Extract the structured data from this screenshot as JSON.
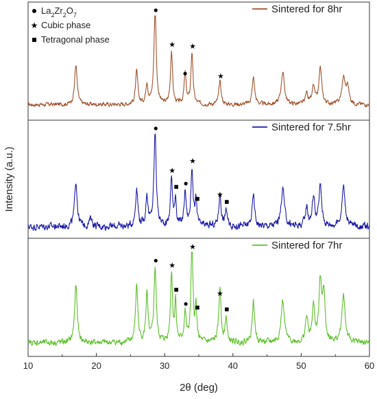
{
  "chart_data": {
    "type": "line",
    "title": "",
    "xlabel": "2θ (deg)",
    "ylabel": "Intensity (a.u.)",
    "xlim": [
      10,
      60
    ],
    "xticks": [
      10,
      20,
      30,
      40,
      50,
      60
    ],
    "grid": false,
    "layout": "three vertically stacked panels sharing x axis",
    "phase_key": [
      {
        "symbol": "circle",
        "formula_parts": [
          "La",
          "2",
          "Zr",
          "2",
          "O",
          "7"
        ]
      },
      {
        "symbol": "star",
        "label": "Cubic phase"
      },
      {
        "symbol": "square",
        "label": "Tetragonal phase"
      }
    ],
    "series": [
      {
        "name": "Sintered for 8hr",
        "color": "#a0522d",
        "panel": 0,
        "baseline": 0.12,
        "noise": 0.035,
        "peaks": [
          {
            "x": 17.0,
            "h": 0.42,
            "w": 0.22
          },
          {
            "x": 25.9,
            "h": 0.34,
            "w": 0.2
          },
          {
            "x": 27.4,
            "h": 0.22,
            "w": 0.18
          },
          {
            "x": 28.6,
            "h": 1.0,
            "w": 0.2
          },
          {
            "x": 31.0,
            "h": 0.56,
            "w": 0.18
          },
          {
            "x": 33.0,
            "h": 0.32,
            "w": 0.18
          },
          {
            "x": 34.0,
            "h": 0.54,
            "w": 0.18
          },
          {
            "x": 38.1,
            "h": 0.24,
            "w": 0.2
          },
          {
            "x": 43.0,
            "h": 0.28,
            "w": 0.22
          },
          {
            "x": 47.3,
            "h": 0.34,
            "w": 0.28
          },
          {
            "x": 50.8,
            "h": 0.12,
            "w": 0.22
          },
          {
            "x": 51.8,
            "h": 0.18,
            "w": 0.22
          },
          {
            "x": 52.8,
            "h": 0.38,
            "w": 0.24
          },
          {
            "x": 56.2,
            "h": 0.28,
            "w": 0.28
          },
          {
            "x": 56.8,
            "h": 0.18,
            "w": 0.24
          }
        ],
        "markers": [
          {
            "x": 28.6,
            "symbol": "circle"
          },
          {
            "x": 31.0,
            "symbol": "star"
          },
          {
            "x": 32.9,
            "symbol": "circle"
          },
          {
            "x": 34.0,
            "symbol": "star"
          },
          {
            "x": 38.1,
            "symbol": "star"
          }
        ]
      },
      {
        "name": "Sintered for 7.5hr",
        "color": "#1a1aa6",
        "panel": 1,
        "baseline": 0.08,
        "noise": 0.06,
        "peaks": [
          {
            "x": 17.0,
            "h": 0.48,
            "w": 0.22
          },
          {
            "x": 19.2,
            "h": 0.1,
            "w": 0.2
          },
          {
            "x": 25.9,
            "h": 0.4,
            "w": 0.2
          },
          {
            "x": 27.4,
            "h": 0.32,
            "w": 0.18
          },
          {
            "x": 28.6,
            "h": 1.0,
            "w": 0.2
          },
          {
            "x": 31.0,
            "h": 0.5,
            "w": 0.18
          },
          {
            "x": 31.6,
            "h": 0.3,
            "w": 0.14
          },
          {
            "x": 33.0,
            "h": 0.36,
            "w": 0.18
          },
          {
            "x": 34.0,
            "h": 0.6,
            "w": 0.18
          },
          {
            "x": 34.6,
            "h": 0.28,
            "w": 0.14
          },
          {
            "x": 38.1,
            "h": 0.34,
            "w": 0.2
          },
          {
            "x": 39.0,
            "h": 0.18,
            "w": 0.16
          },
          {
            "x": 43.0,
            "h": 0.32,
            "w": 0.22
          },
          {
            "x": 47.3,
            "h": 0.4,
            "w": 0.28
          },
          {
            "x": 50.8,
            "h": 0.2,
            "w": 0.22
          },
          {
            "x": 51.8,
            "h": 0.3,
            "w": 0.22
          },
          {
            "x": 52.8,
            "h": 0.42,
            "w": 0.24
          },
          {
            "x": 56.2,
            "h": 0.42,
            "w": 0.28
          }
        ],
        "markers": [
          {
            "x": 28.6,
            "symbol": "circle"
          },
          {
            "x": 31.0,
            "symbol": "star"
          },
          {
            "x": 31.6,
            "symbol": "square"
          },
          {
            "x": 33.0,
            "symbol": "circle"
          },
          {
            "x": 34.0,
            "symbol": "star"
          },
          {
            "x": 34.7,
            "symbol": "square"
          },
          {
            "x": 38.0,
            "symbol": "star"
          },
          {
            "x": 39.0,
            "symbol": "square"
          }
        ]
      },
      {
        "name": "Sintered for 7hr",
        "color": "#5cbf2a",
        "panel": 2,
        "baseline": 0.1,
        "noise": 0.05,
        "peaks": [
          {
            "x": 17.0,
            "h": 0.6,
            "w": 0.22
          },
          {
            "x": 25.9,
            "h": 0.6,
            "w": 0.2
          },
          {
            "x": 27.4,
            "h": 0.5,
            "w": 0.18
          },
          {
            "x": 28.6,
            "h": 0.78,
            "w": 0.2
          },
          {
            "x": 31.0,
            "h": 0.72,
            "w": 0.18
          },
          {
            "x": 31.6,
            "h": 0.42,
            "w": 0.14
          },
          {
            "x": 33.0,
            "h": 0.3,
            "w": 0.18
          },
          {
            "x": 34.0,
            "h": 1.0,
            "w": 0.18
          },
          {
            "x": 34.6,
            "h": 0.36,
            "w": 0.14
          },
          {
            "x": 38.1,
            "h": 0.56,
            "w": 0.2
          },
          {
            "x": 39.0,
            "h": 0.26,
            "w": 0.16
          },
          {
            "x": 43.0,
            "h": 0.42,
            "w": 0.22
          },
          {
            "x": 47.3,
            "h": 0.44,
            "w": 0.28
          },
          {
            "x": 50.8,
            "h": 0.26,
            "w": 0.22
          },
          {
            "x": 51.8,
            "h": 0.36,
            "w": 0.22
          },
          {
            "x": 52.8,
            "h": 0.6,
            "w": 0.24
          },
          {
            "x": 53.3,
            "h": 0.5,
            "w": 0.22
          },
          {
            "x": 56.2,
            "h": 0.5,
            "w": 0.28
          }
        ],
        "markers": [
          {
            "x": 28.6,
            "symbol": "circle"
          },
          {
            "x": 31.0,
            "symbol": "star"
          },
          {
            "x": 31.6,
            "symbol": "square"
          },
          {
            "x": 33.0,
            "symbol": "circle"
          },
          {
            "x": 34.0,
            "symbol": "star"
          },
          {
            "x": 34.7,
            "symbol": "square"
          },
          {
            "x": 38.0,
            "symbol": "star"
          },
          {
            "x": 39.0,
            "symbol": "square"
          }
        ]
      }
    ]
  }
}
